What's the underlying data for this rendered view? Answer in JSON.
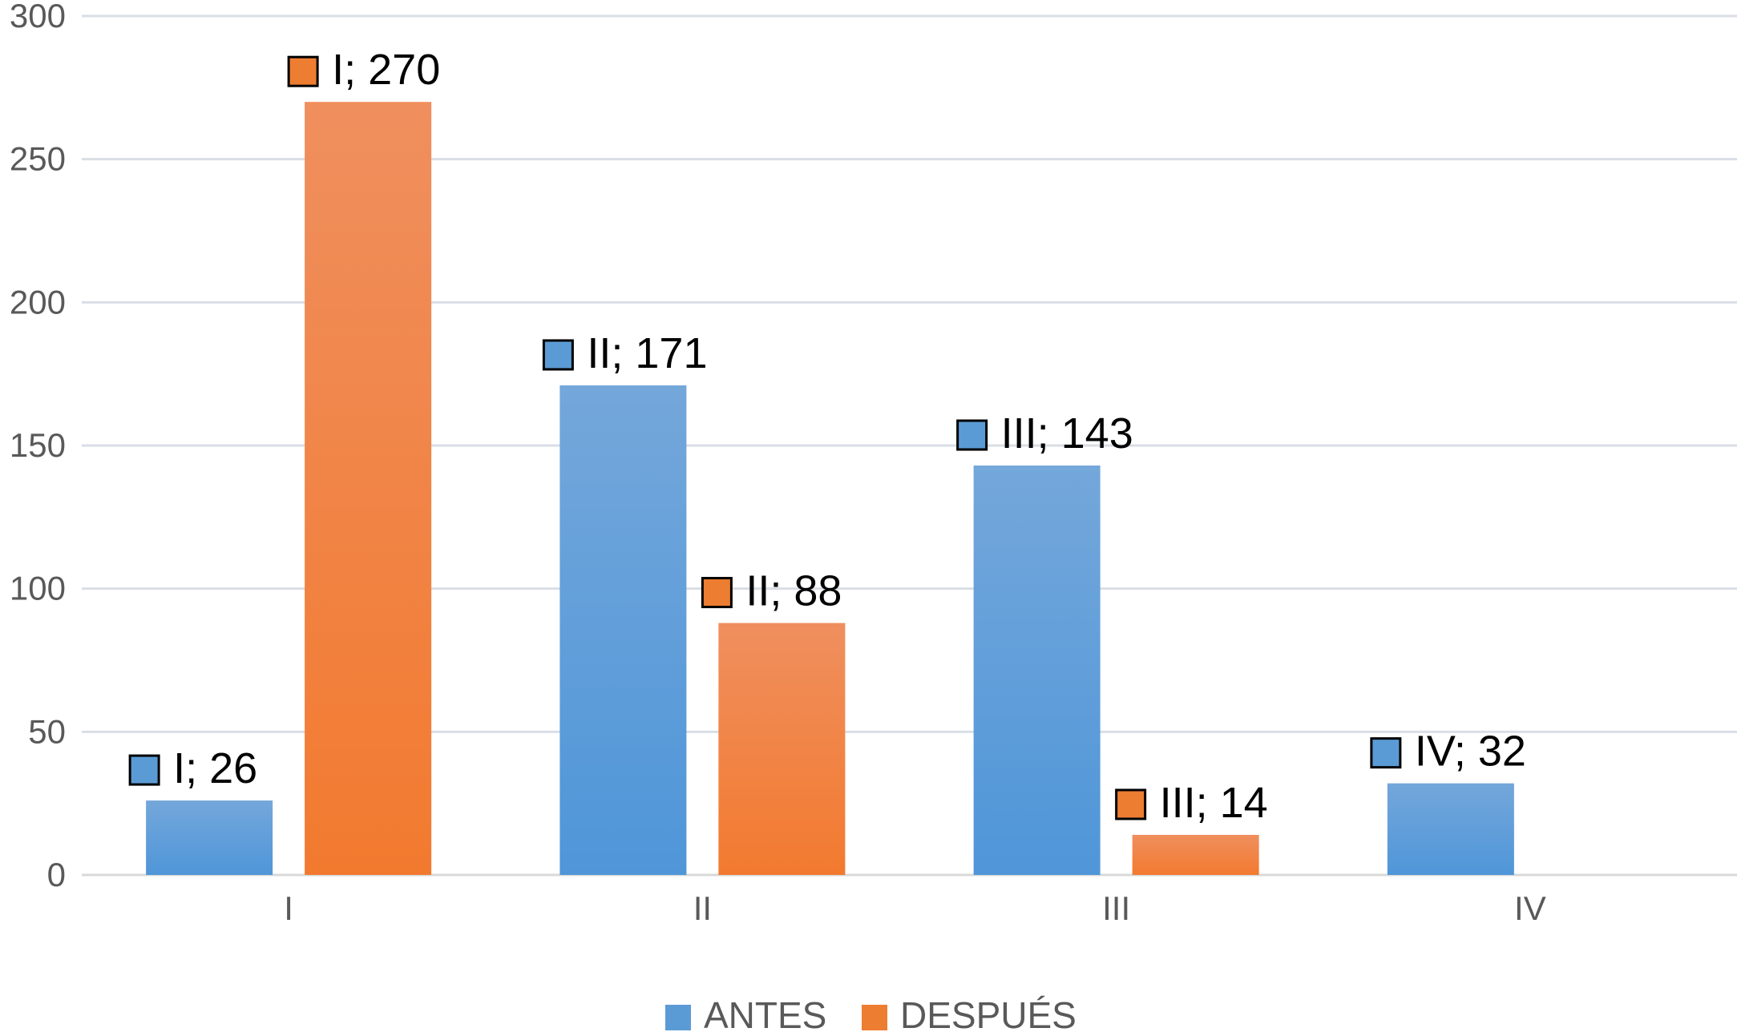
{
  "chart_data": {
    "type": "bar",
    "categories": [
      "I",
      "II",
      "III",
      "IV"
    ],
    "series": [
      {
        "name": "ANTES",
        "values": [
          26,
          171,
          143,
          32
        ],
        "color": "#5b9bd5"
      },
      {
        "name": "DESPUÉS",
        "values": [
          270,
          88,
          14,
          null
        ],
        "color": "#ed7d31"
      }
    ],
    "data_labels": [
      [
        "I; 26",
        "II; 171",
        "III; 143",
        "IV; 32"
      ],
      [
        "I; 270",
        "II; 88",
        "III; 14",
        ""
      ]
    ],
    "title": "",
    "xlabel": "",
    "ylabel": "",
    "ylim": [
      0,
      300
    ],
    "yticks": [
      "0",
      "50",
      "100",
      "150",
      "200",
      "250",
      "300"
    ],
    "grid": true,
    "legend": "bottom"
  }
}
